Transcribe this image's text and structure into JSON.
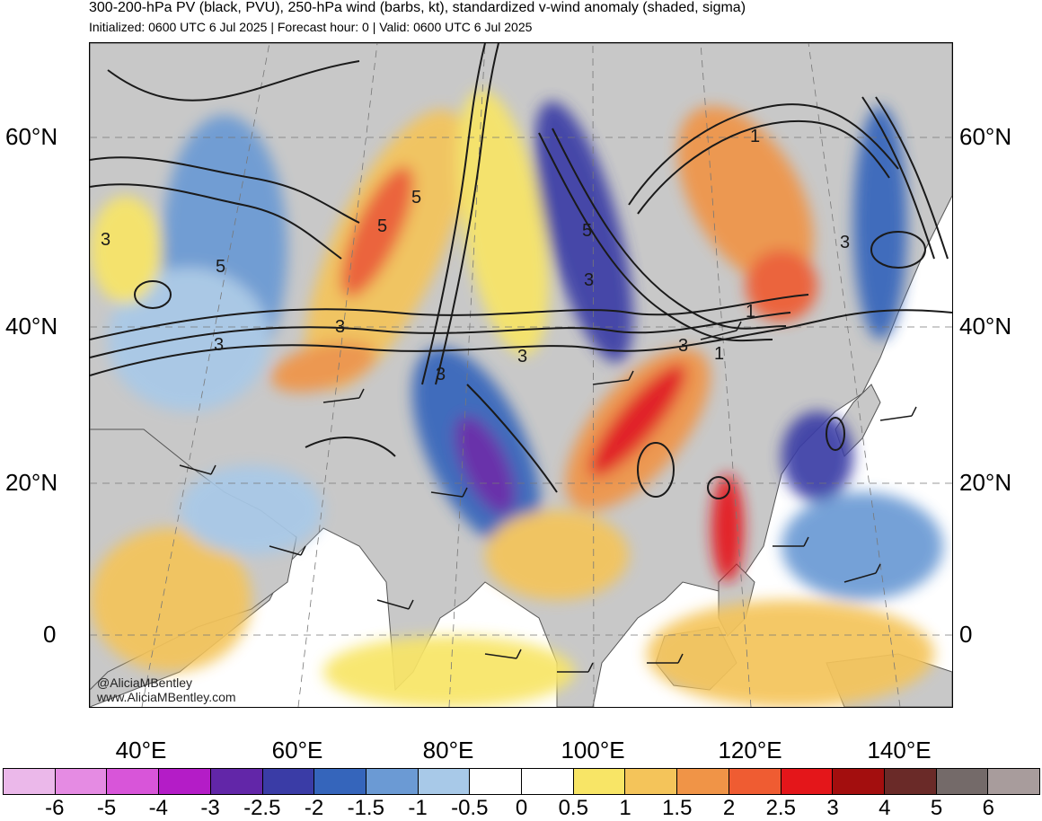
{
  "header": {
    "title": "300-200-hPa PV (black, PVU), 250-hPa wind (barbs, kt), standardized v-wind anomaly (shaded, sigma)",
    "subtitle": "Initialized: 0600 UTC 6 Jul 2025 | Forecast hour: 0 | Valid: 0600 UTC 6 Jul 2025"
  },
  "map": {
    "lat_labels": [
      "60°N",
      "40°N",
      "20°N",
      "0"
    ],
    "lon_labels": [
      "40°E",
      "60°E",
      "80°E",
      "100°E",
      "120°E",
      "140°E"
    ],
    "contour_labels": [
      "5",
      "3",
      "5",
      "3",
      "5",
      "3",
      "3",
      "3",
      "5",
      "3",
      "1",
      "3",
      "1",
      "3",
      "1"
    ],
    "credit_handle": "@AliciaMBentley",
    "credit_site": "www.AliciaMBentley.com",
    "colors": {
      "land": "#c8c8c8",
      "ocean": "#ffffff",
      "coast": "#555555",
      "contour": "#1a1a1a"
    }
  },
  "colorbar": {
    "labels": [
      "-6",
      "-5",
      "-4",
      "-3",
      "-2.5",
      "-2",
      "-1.5",
      "-1",
      "-0.5",
      "0",
      "0.5",
      "1",
      "1.5",
      "2",
      "2.5",
      "3",
      "4",
      "5",
      "6"
    ],
    "colors": [
      "#ebb8ea",
      "#e58be3",
      "#d855d9",
      "#b41cc7",
      "#6226a8",
      "#3a3ca6",
      "#3565bb",
      "#6b9ad4",
      "#a8c9e8",
      "#ffffff",
      "#ffffff",
      "#f8e566",
      "#f4c45a",
      "#f09447",
      "#ef5c32",
      "#e4161a",
      "#a30e0e",
      "#6a2a28",
      "#746a69",
      "#a89c9c"
    ]
  }
}
